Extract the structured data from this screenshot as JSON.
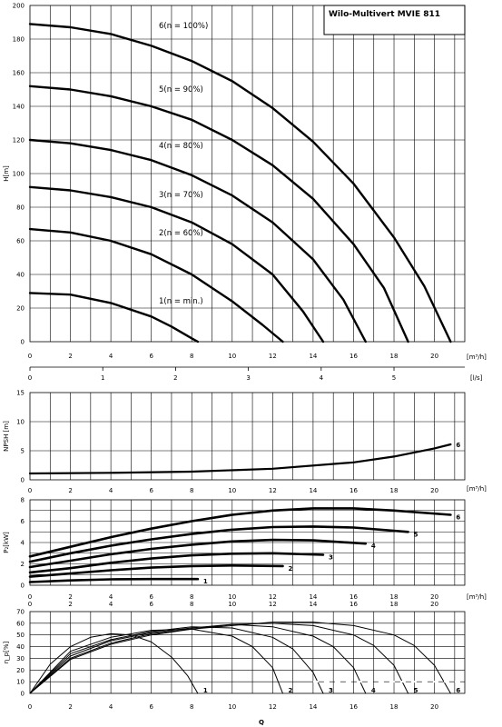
{
  "title_box": {
    "text": "Wilo-Multivert MVIE 811"
  },
  "chart_data": [
    {
      "id": "head",
      "type": "line",
      "ylabel": "H[m]",
      "xlabel": "[m³/h]",
      "x_ticks": [
        "0",
        "2",
        "4",
        "6",
        "8",
        "10",
        "12",
        "14",
        "16",
        "18",
        "20"
      ],
      "y_ticks": [
        "0",
        "20",
        "40",
        "60",
        "80",
        "100",
        "120",
        "140",
        "160",
        "180",
        "200"
      ],
      "xlim": [
        0,
        21.5
      ],
      "ylim": [
        0,
        200
      ],
      "grid": true,
      "secondary_axis": {
        "label": "[l/s]",
        "ticks": [
          "0",
          "1",
          "2",
          "3",
          "4",
          "5"
        ]
      },
      "series": [
        {
          "name": "1(n = min.)",
          "x": [
            0,
            2,
            4,
            6,
            7,
            8,
            8.3
          ],
          "y": [
            29,
            28,
            23,
            15,
            9,
            2,
            0
          ]
        },
        {
          "name": "2(n = 60%)",
          "x": [
            0,
            2,
            4,
            6,
            8,
            10,
            11.5,
            12.5
          ],
          "y": [
            67,
            65,
            60,
            52,
            40,
            24,
            10,
            0
          ]
        },
        {
          "name": "3(n = 70%)",
          "x": [
            0,
            2,
            4,
            6,
            8,
            10,
            12,
            13.5,
            14.5
          ],
          "y": [
            92,
            90,
            86,
            80,
            71,
            58,
            40,
            18,
            0
          ]
        },
        {
          "name": "4(n = 80%)",
          "x": [
            0,
            2,
            4,
            6,
            8,
            10,
            12,
            14,
            15.5,
            16.6
          ],
          "y": [
            120,
            118,
            114,
            108,
            99,
            87,
            71,
            49,
            25,
            0
          ]
        },
        {
          "name": "5(n = 90%)",
          "x": [
            0,
            2,
            4,
            6,
            8,
            10,
            12,
            14,
            16,
            17.5,
            18.7
          ],
          "y": [
            152,
            150,
            146,
            140,
            132,
            120,
            105,
            85,
            58,
            32,
            0
          ]
        },
        {
          "name": "6(n = 100%)",
          "x": [
            0,
            2,
            4,
            6,
            8,
            10,
            12,
            14,
            16,
            18,
            19.5,
            20.8
          ],
          "y": [
            189,
            187,
            183,
            176,
            167,
            155,
            139,
            119,
            94,
            62,
            33,
            0
          ]
        }
      ]
    },
    {
      "id": "npsh",
      "type": "line",
      "ylabel": "NPSH [m]",
      "xlabel": "[m³/h]",
      "y_ticks": [
        "0",
        "5",
        "10",
        "15"
      ],
      "ylim": [
        0,
        15
      ],
      "xlim": [
        0,
        21.5
      ],
      "grid": true,
      "series": [
        {
          "name": "6",
          "x": [
            0,
            4,
            8,
            12,
            16,
            18,
            20,
            20.8
          ],
          "y": [
            1.1,
            1.2,
            1.4,
            1.9,
            3.0,
            4.0,
            5.4,
            6.1
          ]
        }
      ]
    },
    {
      "id": "power",
      "type": "line",
      "ylabel": "P₂[kW]",
      "xlabel": "[m³/h]",
      "x_ticks": [
        "0",
        "2",
        "4",
        "6",
        "8",
        "10",
        "12",
        "14",
        "16",
        "18",
        "20"
      ],
      "y_ticks": [
        "0",
        "2",
        "4",
        "6",
        "8"
      ],
      "ylim": [
        0,
        8
      ],
      "xlim": [
        0,
        21.5
      ],
      "grid": true,
      "series": [
        {
          "name": "1",
          "x": [
            0,
            2,
            4,
            6,
            8.3
          ],
          "y": [
            0.3,
            0.45,
            0.55,
            0.58,
            0.58
          ]
        },
        {
          "name": "2",
          "x": [
            0,
            2,
            4,
            6,
            8,
            10,
            12.5
          ],
          "y": [
            0.8,
            1.1,
            1.4,
            1.65,
            1.8,
            1.85,
            1.8
          ]
        },
        {
          "name": "3",
          "x": [
            0,
            2,
            4,
            6,
            8,
            10,
            12,
            14.5
          ],
          "y": [
            1.2,
            1.6,
            2.1,
            2.5,
            2.8,
            2.95,
            3.0,
            2.85
          ]
        },
        {
          "name": "4",
          "x": [
            0,
            2,
            4,
            6,
            8,
            10,
            12,
            14,
            16.6
          ],
          "y": [
            1.7,
            2.3,
            2.9,
            3.4,
            3.8,
            4.1,
            4.25,
            4.2,
            3.9
          ]
        },
        {
          "name": "5",
          "x": [
            0,
            2,
            4,
            6,
            8,
            10,
            12,
            14,
            16,
            18.7
          ],
          "y": [
            2.2,
            3.0,
            3.7,
            4.3,
            4.8,
            5.2,
            5.45,
            5.5,
            5.4,
            5.0
          ]
        },
        {
          "name": "6",
          "x": [
            0,
            2,
            4,
            6,
            8,
            10,
            12,
            14,
            16,
            18,
            20.8
          ],
          "y": [
            2.7,
            3.6,
            4.5,
            5.3,
            6.0,
            6.6,
            7.0,
            7.2,
            7.2,
            7.0,
            6.6
          ]
        }
      ]
    },
    {
      "id": "efficiency",
      "type": "line",
      "ylabel": "η_p[%]",
      "xlabel": "Q",
      "x_ticks": [
        "0",
        "2",
        "4",
        "6",
        "8",
        "10",
        "12",
        "14",
        "16",
        "18",
        "20"
      ],
      "y_ticks": [
        "0",
        "10",
        "20",
        "30",
        "40",
        "50",
        "60",
        "70"
      ],
      "ylim": [
        0,
        70
      ],
      "xlim": [
        0,
        21.5
      ],
      "grid": true,
      "series": [
        {
          "name": "1",
          "x": [
            0,
            1,
            2,
            3,
            4,
            5,
            6,
            7,
            7.8,
            8.3
          ],
          "y": [
            0,
            25,
            40,
            48,
            51,
            50,
            44,
            31,
            15,
            0
          ]
        },
        {
          "name": "2",
          "x": [
            0,
            2,
            4,
            6,
            8,
            10,
            11,
            12,
            12.5
          ],
          "y": [
            0,
            36,
            48,
            54,
            55,
            49,
            40,
            22,
            0
          ]
        },
        {
          "name": "3",
          "x": [
            0,
            2,
            4,
            6,
            8,
            10,
            12,
            13,
            14,
            14.5
          ],
          "y": [
            0,
            34,
            46,
            53,
            57,
            56,
            48,
            38,
            18,
            0
          ]
        },
        {
          "name": "4",
          "x": [
            0,
            2,
            4,
            6,
            8,
            10,
            12,
            14,
            15,
            16,
            16.6
          ],
          "y": [
            0,
            32,
            45,
            52,
            56,
            59,
            57,
            49,
            40,
            22,
            0
          ]
        },
        {
          "name": "5",
          "x": [
            0,
            2,
            4,
            6,
            8,
            10,
            12,
            14,
            16,
            17,
            18,
            18.7
          ],
          "y": [
            0,
            30,
            43,
            51,
            55,
            59,
            60,
            58,
            50,
            41,
            24,
            0
          ]
        },
        {
          "name": "6",
          "x": [
            0,
            2,
            4,
            6,
            8,
            10,
            12,
            14,
            16,
            18,
            19,
            20,
            20.8
          ],
          "y": [
            0,
            29,
            42,
            50,
            55,
            58,
            61,
            61,
            58,
            50,
            41,
            24,
            0
          ]
        }
      ]
    }
  ]
}
